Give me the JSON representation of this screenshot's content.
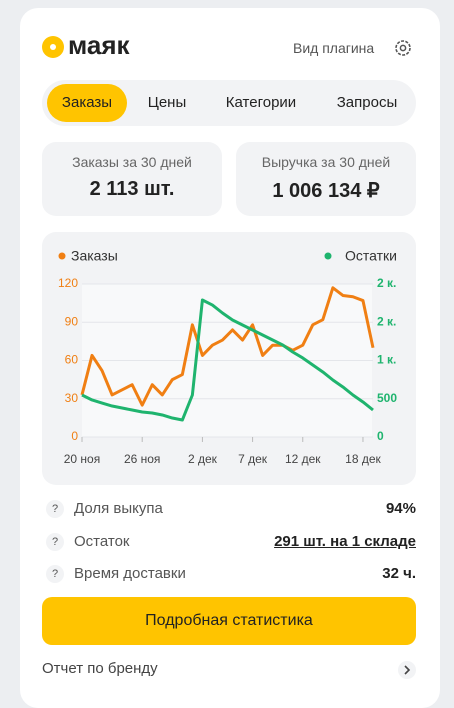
{
  "header": {
    "logo": "маяк",
    "settings": "Вид плагина"
  },
  "tabs": [
    "Заказы",
    "Цены",
    "Категории",
    "Запросы"
  ],
  "stats": [
    {
      "label": "Заказы за 30 дней",
      "value": "2 113 шт."
    },
    {
      "label": "Выручка за 30 дней",
      "value": "1 006 134 ₽"
    }
  ],
  "chart_data": {
    "type": "line",
    "categories": [
      "20 ноя",
      null,
      null,
      null,
      null,
      null,
      "26 ноя",
      null,
      null,
      null,
      null,
      null,
      "2 дек",
      null,
      null,
      null,
      null,
      "7 дек",
      null,
      null,
      null,
      null,
      "12 дек",
      null,
      null,
      null,
      null,
      null,
      "18 дек",
      null
    ],
    "series": [
      {
        "name": "Заказы",
        "color": "#f07f13",
        "values": [
          33,
          64,
          52,
          33,
          37,
          41,
          25,
          41,
          33,
          45,
          49,
          88,
          64,
          72,
          76,
          84,
          76,
          88,
          64,
          72,
          72,
          68,
          72,
          88,
          92,
          117,
          111,
          110,
          107,
          70
        ]
      },
      {
        "name": "Остатки",
        "color": "#1fb46e",
        "axis": "y2",
        "values": [
          549,
          484,
          444,
          405,
          379,
          353,
          327,
          314,
          288,
          248,
          222,
          549,
          1791,
          1725,
          1621,
          1529,
          1464,
          1399,
          1333,
          1268,
          1203,
          1111,
          1033,
          941,
          850,
          745,
          654,
          549,
          458,
          353
        ]
      }
    ],
    "ylim": [
      0,
      120
    ],
    "yticks": [
      0,
      30,
      60,
      90,
      120
    ],
    "y2lim": [
      0,
      2000
    ],
    "y2ticks": [
      0,
      500,
      {
        "value": 1000,
        "label": "1 к."
      },
      {
        "value": 1500,
        "label": "2 к."
      },
      {
        "value": 2000,
        "label": "2 к."
      }
    ],
    "grid": true
  },
  "metrics": [
    {
      "label": "Доля выкупа",
      "value": "94%",
      "hint": "?"
    },
    {
      "label": "Остаток",
      "value": "291 шт. на 1 складе",
      "hint": "?"
    },
    {
      "label": "Время доставки",
      "value": "32 ч.",
      "hint": "?"
    }
  ],
  "button": "Подробная статистика",
  "footer_link": "Отчет по бренду"
}
